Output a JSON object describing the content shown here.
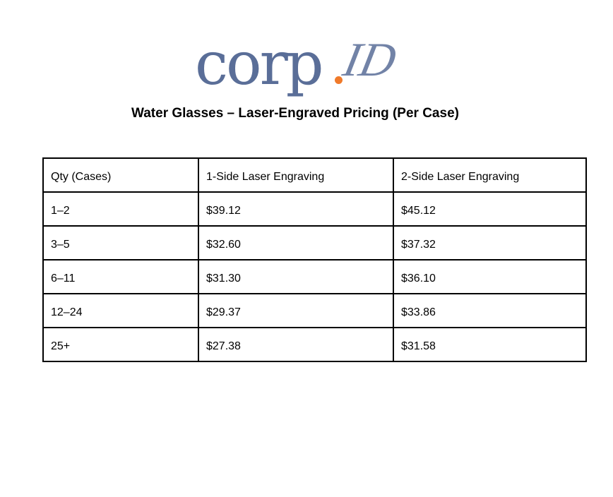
{
  "logo": {
    "wordmark": "corp",
    "script": "ID"
  },
  "title": "Water Glasses – Laser-Engraved Pricing (Per Case)",
  "table": {
    "header": [
      "Qty (Cases)",
      "1-Side Laser Engraving",
      "2-Side Laser Engraving"
    ],
    "rows": [
      [
        "1–2",
        "$39.12",
        "$45.12"
      ],
      [
        "3–5",
        "$32.60",
        "$37.32"
      ],
      [
        "6–11",
        "$31.30",
        "$36.10"
      ],
      [
        "12–24",
        "$29.37",
        "$33.86"
      ],
      [
        "25+",
        "$27.38",
        "$31.58"
      ]
    ]
  }
}
